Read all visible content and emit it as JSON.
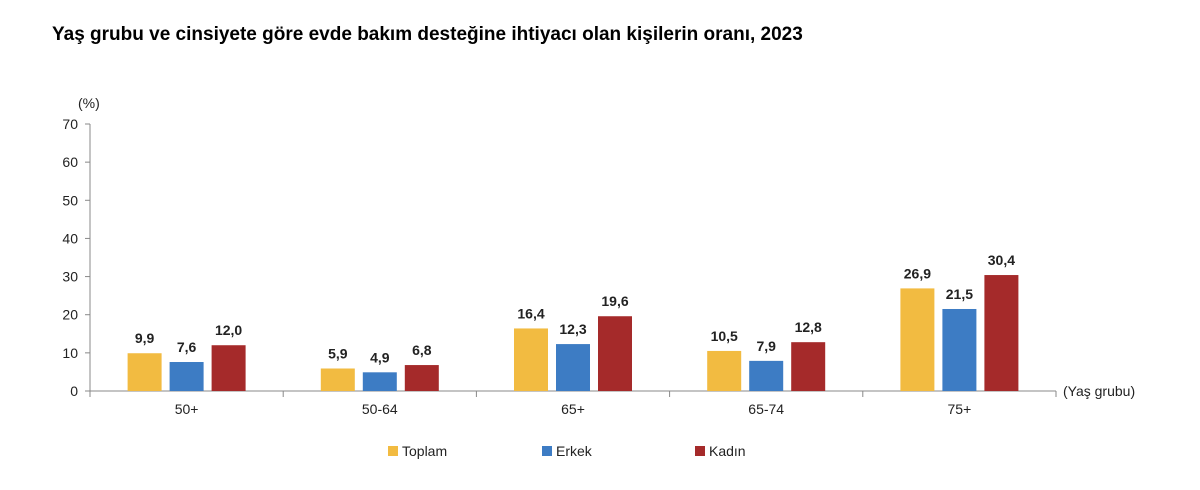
{
  "chart_data": {
    "type": "bar",
    "title": "Yaş grubu ve cinsiyete göre evde bakım desteğine ihtiyacı olan kişilerin oranı, 2023",
    "ylabel": "(%)",
    "xlabel": "(Yaş grubu)",
    "ylim": [
      0,
      70
    ],
    "yticks": [
      "0",
      "10",
      "20",
      "30",
      "40",
      "50",
      "60",
      "70"
    ],
    "categories": [
      "50+",
      "50-64",
      "65+",
      "65-74",
      "75+"
    ],
    "series": [
      {
        "name": "Toplam",
        "color": "#F2BB41",
        "values": [
          9.9,
          5.9,
          16.4,
          10.5,
          26.9
        ],
        "labels": [
          "9,9",
          "5,9",
          "16,4",
          "10,5",
          "26,9"
        ]
      },
      {
        "name": "Erkek",
        "color": "#3D7CC4",
        "values": [
          7.6,
          4.9,
          12.3,
          7.9,
          21.5
        ],
        "labels": [
          "7,6",
          "4,9",
          "12,3",
          "7,9",
          "21,5"
        ]
      },
      {
        "name": "Kadın",
        "color": "#A52A2A",
        "values": [
          12.0,
          6.8,
          19.6,
          12.8,
          30.4
        ],
        "labels": [
          "12,0",
          "6,8",
          "19,6",
          "12,8",
          "30,4"
        ]
      }
    ],
    "grid": false,
    "legend": "bottom-center"
  }
}
